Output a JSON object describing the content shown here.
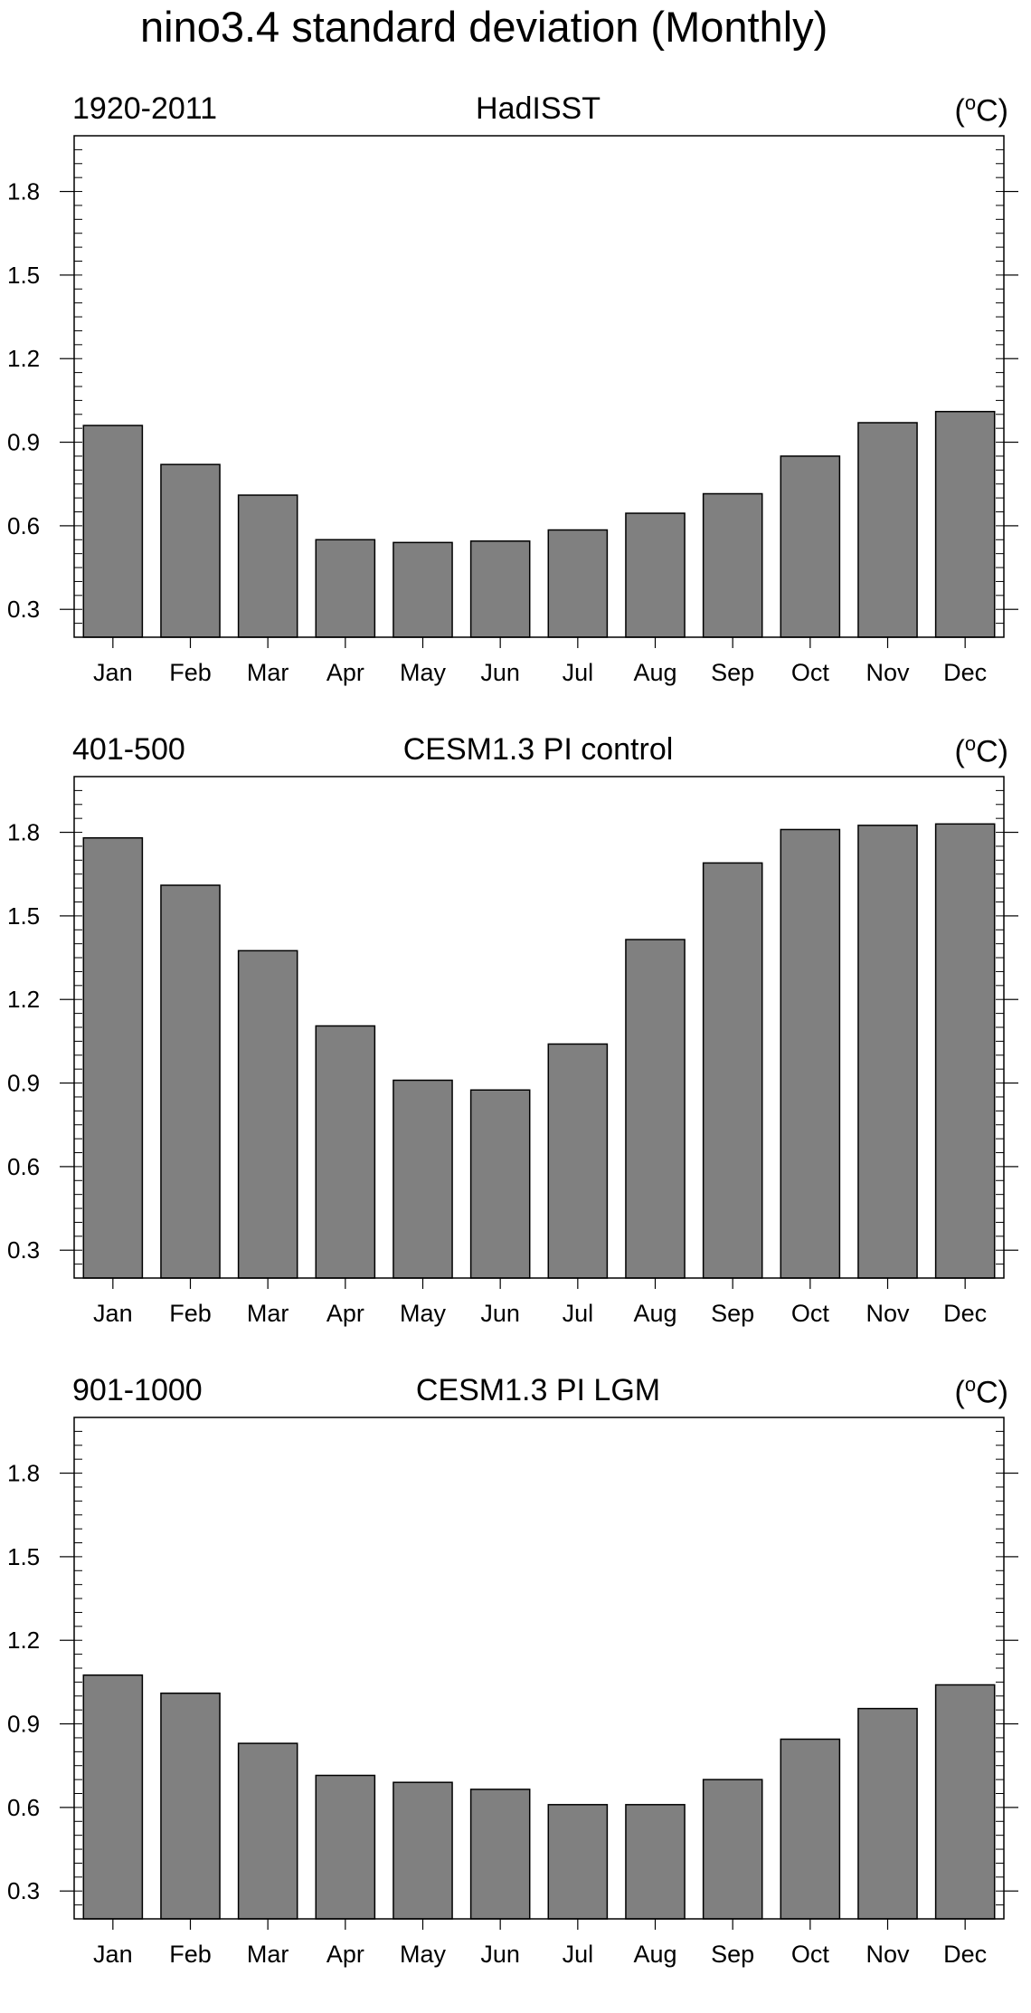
{
  "title": "nino3.4 standard deviation (Monthly)",
  "units": {
    "open": "(",
    "sup": "o",
    "rest": "C)"
  },
  "chart_data": [
    {
      "type": "bar",
      "left_label": "1920-2011",
      "title": "HadISST",
      "categories": [
        "Jan",
        "Feb",
        "Mar",
        "Apr",
        "May",
        "Jun",
        "Jul",
        "Aug",
        "Sep",
        "Oct",
        "Nov",
        "Dec"
      ],
      "values": [
        0.96,
        0.82,
        0.71,
        0.55,
        0.54,
        0.545,
        0.585,
        0.645,
        0.715,
        0.85,
        0.97,
        1.01
      ],
      "ylim": [
        0.2,
        2.0
      ],
      "yticks": [
        0.3,
        0.6,
        0.9,
        1.2,
        1.5,
        1.8
      ],
      "ytick_labels": [
        "0.3",
        "0.6",
        "0.9",
        "1.2",
        "1.5",
        "1.8"
      ],
      "bar_color": "#808080"
    },
    {
      "type": "bar",
      "left_label": "401-500",
      "title": "CESM1.3 PI control",
      "categories": [
        "Jan",
        "Feb",
        "Mar",
        "Apr",
        "May",
        "Jun",
        "Jul",
        "Aug",
        "Sep",
        "Oct",
        "Nov",
        "Dec"
      ],
      "values": [
        1.78,
        1.61,
        1.375,
        1.105,
        0.91,
        0.875,
        1.04,
        1.415,
        1.69,
        1.81,
        1.825,
        1.83
      ],
      "ylim": [
        0.2,
        2.0
      ],
      "yticks": [
        0.3,
        0.6,
        0.9,
        1.2,
        1.5,
        1.8
      ],
      "ytick_labels": [
        "0.3",
        "0.6",
        "0.9",
        "1.2",
        "1.5",
        "1.8"
      ],
      "bar_color": "#808080"
    },
    {
      "type": "bar",
      "left_label": "901-1000",
      "title": "CESM1.3 PI LGM",
      "categories": [
        "Jan",
        "Feb",
        "Mar",
        "Apr",
        "May",
        "Jun",
        "Jul",
        "Aug",
        "Sep",
        "Oct",
        "Nov",
        "Dec"
      ],
      "values": [
        1.075,
        1.01,
        0.83,
        0.715,
        0.69,
        0.665,
        0.61,
        0.61,
        0.7,
        0.845,
        0.955,
        1.04
      ],
      "ylim": [
        0.2,
        2.0
      ],
      "yticks": [
        0.3,
        0.6,
        0.9,
        1.2,
        1.5,
        1.8
      ],
      "ytick_labels": [
        "0.3",
        "0.6",
        "0.9",
        "1.2",
        "1.5",
        "1.8"
      ],
      "bar_color": "#808080"
    }
  ]
}
